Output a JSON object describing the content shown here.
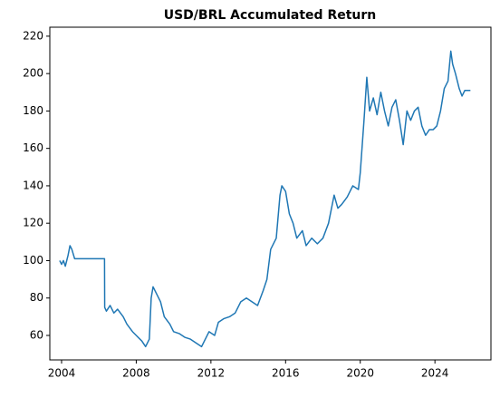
{
  "chart_data": {
    "type": "line",
    "title": "USD/BRL Accumulated Return",
    "x": [
      2003.9,
      2004.0,
      2004.1,
      2004.2,
      2004.35,
      2004.45,
      2004.55,
      2004.7,
      2004.8,
      2006.3,
      2006.31,
      2006.4,
      2006.6,
      2006.8,
      2007.0,
      2007.3,
      2007.5,
      2007.8,
      2008.0,
      2008.3,
      2008.5,
      2008.7,
      2008.8,
      2008.9,
      2009.1,
      2009.3,
      2009.5,
      2009.8,
      2010.0,
      2010.3,
      2010.6,
      2010.9,
      2011.2,
      2011.5,
      2011.7,
      2011.9,
      2012.2,
      2012.4,
      2012.7,
      2013.0,
      2013.3,
      2013.6,
      2013.9,
      2014.2,
      2014.5,
      2014.8,
      2015.0,
      2015.2,
      2015.5,
      2015.7,
      2015.8,
      2016.0,
      2016.2,
      2016.4,
      2016.6,
      2016.9,
      2017.1,
      2017.4,
      2017.7,
      2018.0,
      2018.3,
      2018.6,
      2018.8,
      2019.0,
      2019.3,
      2019.6,
      2019.9,
      2020.0,
      2020.2,
      2020.35,
      2020.5,
      2020.7,
      2020.9,
      2021.1,
      2021.3,
      2021.5,
      2021.7,
      2021.9,
      2022.1,
      2022.3,
      2022.5,
      2022.7,
      2022.9,
      2023.1,
      2023.3,
      2023.5,
      2023.7,
      2023.9,
      2024.1,
      2024.3,
      2024.5,
      2024.7,
      2024.85,
      2024.95,
      2025.1,
      2025.3,
      2025.45,
      2025.6,
      2025.9
    ],
    "series": [
      {
        "name": "USD/BRL",
        "color": "#1f77b4",
        "values": [
          100,
          98,
          100,
          97,
          103,
          108,
          106,
          101,
          101,
          101,
          75,
          73,
          76,
          72,
          74,
          70,
          66,
          62,
          60,
          57,
          54,
          58,
          80,
          86,
          82,
          78,
          70,
          66,
          62,
          61,
          59,
          58,
          56,
          54,
          58,
          62,
          60,
          67,
          69,
          70,
          72,
          78,
          80,
          78,
          76,
          84,
          90,
          106,
          112,
          135,
          140,
          137,
          125,
          120,
          112,
          116,
          108,
          112,
          109,
          112,
          120,
          135,
          128,
          130,
          134,
          140,
          138,
          147,
          175,
          198,
          180,
          187,
          178,
          190,
          180,
          172,
          182,
          186,
          175,
          162,
          180,
          175,
          180,
          182,
          172,
          167,
          170,
          170,
          172,
          180,
          192,
          196,
          212,
          205,
          200,
          192,
          188,
          191,
          191
        ]
      }
    ],
    "xlim": [
      2003.37,
      2027.0
    ],
    "xticks": [
      2004,
      2008,
      2012,
      2016,
      2020,
      2024
    ],
    "ylim": [
      46.9,
      224.8
    ],
    "yticks": [
      60,
      80,
      100,
      120,
      140,
      160,
      180,
      200,
      220
    ]
  }
}
